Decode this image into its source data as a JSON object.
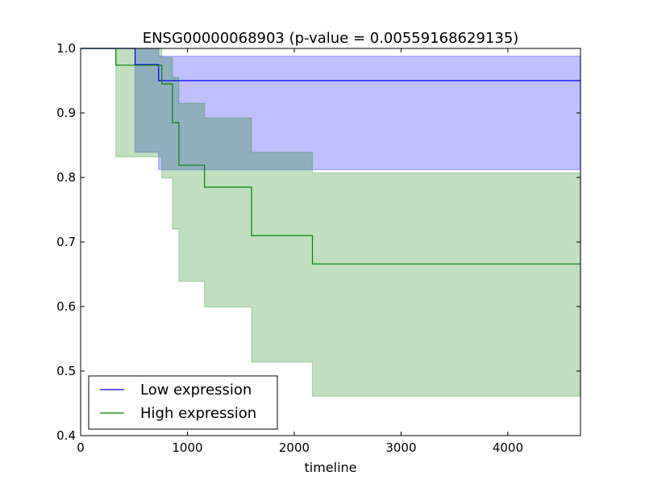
{
  "chart_data": {
    "type": "line",
    "title": "ENSG00000068903 (p-value = 0.00559168629135)",
    "xlabel": "timeline",
    "ylabel": "",
    "xlim": [
      0,
      4680
    ],
    "ylim": [
      0.4,
      1.0
    ],
    "x_ticks": [
      "0",
      "1000",
      "2000",
      "3000",
      "4000"
    ],
    "y_ticks": [
      "0.4",
      "0.5",
      "0.6",
      "0.7",
      "0.8",
      "0.9",
      "1.0"
    ],
    "grid": false,
    "legend_position": "lower-left",
    "series": [
      {
        "name": "Low expression",
        "color": "#0000ff",
        "band_color": "#0000ff",
        "steps": [
          [
            0,
            1.0
          ],
          [
            510,
            0.975
          ],
          [
            730,
            0.95
          ],
          [
            4680,
            0.95
          ]
        ],
        "ci_upper": [
          [
            0,
            1.0
          ],
          [
            510,
            1.0
          ],
          [
            730,
            0.988
          ],
          [
            4680,
            0.988
          ]
        ],
        "ci_lower": [
          [
            0,
            1.0
          ],
          [
            510,
            0.839
          ],
          [
            730,
            0.812
          ],
          [
            4680,
            0.812
          ]
        ]
      },
      {
        "name": "High expression",
        "color": "#008000",
        "band_color": "#008000",
        "steps": [
          [
            0,
            1.0
          ],
          [
            330,
            0.974
          ],
          [
            760,
            0.945
          ],
          [
            860,
            0.885
          ],
          [
            920,
            0.819
          ],
          [
            1160,
            0.785
          ],
          [
            1600,
            0.71
          ],
          [
            2170,
            0.666
          ],
          [
            4680,
            0.666
          ]
        ],
        "ci_upper": [
          [
            0,
            1.0
          ],
          [
            330,
            1.0
          ],
          [
            760,
            0.986
          ],
          [
            860,
            0.955
          ],
          [
            920,
            0.915
          ],
          [
            1160,
            0.892
          ],
          [
            1600,
            0.839
          ],
          [
            2170,
            0.807
          ],
          [
            4680,
            0.807
          ]
        ],
        "ci_lower": [
          [
            0,
            1.0
          ],
          [
            330,
            0.832
          ],
          [
            760,
            0.799
          ],
          [
            860,
            0.72
          ],
          [
            920,
            0.639
          ],
          [
            1160,
            0.599
          ],
          [
            1600,
            0.514
          ],
          [
            2170,
            0.461
          ],
          [
            4680,
            0.461
          ]
        ]
      }
    ]
  }
}
